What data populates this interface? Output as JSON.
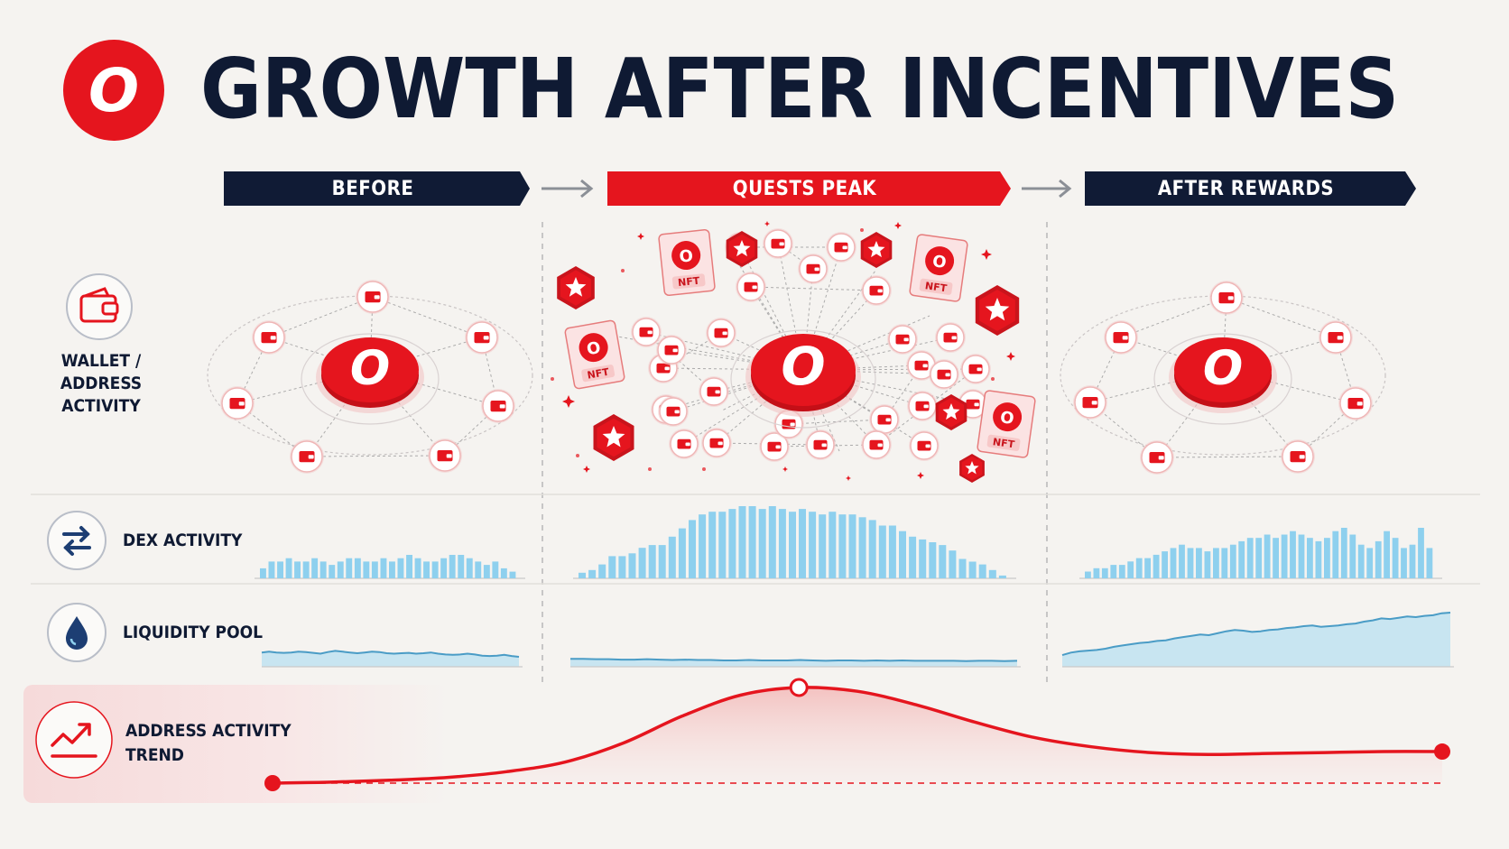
{
  "title": "GROWTH AFTER INCENTIVES",
  "logo_letter": "O",
  "phases": [
    {
      "label": "BEFORE",
      "color": "#101b35"
    },
    {
      "label": "QUESTS PEAK",
      "color": "#e5151e"
    },
    {
      "label": "AFTER REWARDS",
      "color": "#101b35"
    }
  ],
  "rows": {
    "wallet": {
      "label_line1": "WALLET /",
      "label_line2": "ADDRESS ACTIVITY",
      "icon": "wallet-icon"
    },
    "dex": {
      "label": "DEX ACTIVITY",
      "icon": "swap-arrows-icon"
    },
    "liquidity": {
      "label": "LIQUIDITY POOL",
      "icon": "water-drop-icon"
    },
    "trend": {
      "label_line1": "ADDRESS ACTIVITY",
      "label_line2": "TREND",
      "icon": "trend-chart-icon"
    }
  },
  "nft_badge_label": "NFT",
  "network_node_label": "O",
  "colors": {
    "accent": "#e5151e",
    "navy": "#101b35",
    "bar": "#8ed0ee",
    "area": "#bfe2f1",
    "line": "#4a9cc6"
  },
  "chart_data": [
    {
      "type": "bar",
      "name": "dex-before",
      "values": [
        3,
        5,
        5,
        6,
        5,
        5,
        6,
        5,
        4,
        5,
        6,
        6,
        5,
        5,
        6,
        5,
        6,
        7,
        6,
        5,
        5,
        6,
        7,
        7,
        6,
        5,
        4,
        5,
        3,
        2
      ]
    },
    {
      "type": "bar",
      "name": "dex-quests-peak",
      "values": [
        2,
        3,
        5,
        8,
        8,
        9,
        11,
        12,
        12,
        15,
        18,
        21,
        23,
        24,
        24,
        25,
        26,
        26,
        25,
        26,
        25,
        24,
        25,
        24,
        23,
        24,
        23,
        23,
        22,
        21,
        19,
        19,
        17,
        15,
        14,
        13,
        12,
        10,
        7,
        6,
        5,
        3,
        1
      ]
    },
    {
      "type": "bar",
      "name": "dex-after-rewards",
      "values": [
        2,
        3,
        3,
        4,
        4,
        5,
        6,
        6,
        7,
        8,
        9,
        10,
        9,
        9,
        8,
        9,
        9,
        10,
        11,
        12,
        12,
        13,
        12,
        13,
        14,
        13,
        12,
        11,
        12,
        14,
        15,
        13,
        10,
        9,
        11,
        14,
        12,
        9,
        10,
        15,
        9
      ]
    },
    {
      "type": "area",
      "name": "liquidity-before",
      "values": [
        36,
        38,
        36,
        35,
        36,
        38,
        37,
        35,
        33,
        37,
        40,
        38,
        36,
        34,
        36,
        38,
        37,
        34,
        33,
        34,
        35,
        33,
        34,
        36,
        33,
        31,
        30,
        31,
        33,
        31,
        28,
        27,
        28,
        30,
        27,
        25
      ]
    },
    {
      "type": "area",
      "name": "liquidity-quests-peak",
      "values": [
        20,
        20,
        19,
        19,
        18,
        18,
        19,
        18,
        17,
        18,
        17,
        17,
        16,
        16,
        17,
        16,
        16,
        16,
        17,
        16,
        15,
        16,
        16,
        15,
        16,
        15,
        16,
        15,
        15,
        15,
        15,
        14,
        15,
        15,
        14,
        15
      ]
    },
    {
      "type": "area",
      "name": "liquidity-after-rewards",
      "values": [
        18,
        22,
        24,
        25,
        26,
        28,
        31,
        33,
        35,
        37,
        38,
        40,
        41,
        44,
        46,
        48,
        50,
        49,
        52,
        55,
        57,
        56,
        54,
        55,
        57,
        58,
        60,
        61,
        63,
        64,
        62,
        63,
        64,
        66,
        67,
        70,
        72,
        75,
        74,
        76,
        78,
        77,
        79,
        80,
        83,
        84
      ]
    },
    {
      "type": "line",
      "name": "address-activity-trend",
      "x": [
        0,
        0.05,
        0.1,
        0.15,
        0.2,
        0.25,
        0.3,
        0.35,
        0.4,
        0.45,
        0.5,
        0.55,
        0.6,
        0.65,
        0.7,
        0.75,
        0.8,
        0.85,
        0.9,
        0.95,
        1
      ],
      "y": [
        0,
        1,
        3,
        6,
        12,
        22,
        42,
        70,
        92,
        100,
        96,
        82,
        64,
        48,
        38,
        32,
        30,
        31,
        32,
        33,
        33
      ]
    }
  ]
}
